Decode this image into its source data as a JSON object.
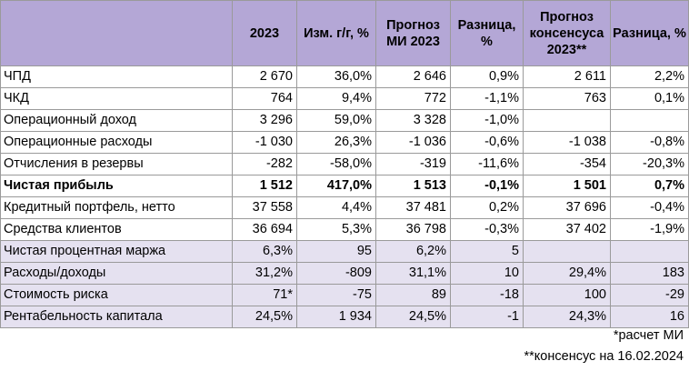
{
  "header": {
    "col0": "",
    "col1": "2023",
    "col2": "Изм. г/г, %",
    "col3": "Прогноз МИ 2023",
    "col4": "Разница, %",
    "col5": "Прогноз консенсуса 2023**",
    "col6": "Разница, %"
  },
  "rows": [
    {
      "label": "ЧПД",
      "v2023": "2 670",
      "yoy": "36,0%",
      "mi": "2 646",
      "diff_mi": "0,9%",
      "cons": "2 611",
      "diff_cons": "2,2%"
    },
    {
      "label": "ЧКД",
      "v2023": "764",
      "yoy": "9,4%",
      "mi": "772",
      "diff_mi": "-1,1%",
      "cons": "763",
      "diff_cons": "0,1%"
    },
    {
      "label": "Операционный доход",
      "v2023": "3 296",
      "yoy": "59,0%",
      "mi": "3 328",
      "diff_mi": "-1,0%",
      "cons": "",
      "diff_cons": ""
    },
    {
      "label": "Операционные расходы",
      "v2023": "-1 030",
      "yoy": "26,3%",
      "mi": "-1 036",
      "diff_mi": "-0,6%",
      "cons": "-1 038",
      "diff_cons": "-0,8%"
    },
    {
      "label": "Отчисления в резервы",
      "v2023": "-282",
      "yoy": "-58,0%",
      "mi": "-319",
      "diff_mi": "-11,6%",
      "cons": "-354",
      "diff_cons": "-20,3%"
    },
    {
      "label": "Чистая прибыль",
      "v2023": "1 512",
      "yoy": "417,0%",
      "mi": "1 513",
      "diff_mi": "-0,1%",
      "cons": "1 501",
      "diff_cons": "0,7%"
    },
    {
      "label": "Кредитный портфель, нетто",
      "v2023": "37 558",
      "yoy": "4,4%",
      "mi": "37 481",
      "diff_mi": "0,2%",
      "cons": "37 696",
      "diff_cons": "-0,4%"
    },
    {
      "label": "Средства клиентов",
      "v2023": "36 694",
      "yoy": "5,3%",
      "mi": "36 798",
      "diff_mi": "-0,3%",
      "cons": "37 402",
      "diff_cons": "-1,9%"
    },
    {
      "label": "Чистая процентная маржа",
      "v2023": "6,3%",
      "yoy": "95",
      "mi": "6,2%",
      "diff_mi": "5",
      "cons": "",
      "diff_cons": ""
    },
    {
      "label": "Расходы/доходы",
      "v2023": "31,2%",
      "yoy": "-809",
      "mi": "31,1%",
      "diff_mi": "10",
      "cons": "29,4%",
      "diff_cons": "183"
    },
    {
      "label": "Стоимость риска",
      "v2023": "71*",
      "yoy": "-75",
      "mi": "89",
      "diff_mi": "-18",
      "cons": "100",
      "diff_cons": "-29"
    },
    {
      "label": "Рентабельность капитала",
      "v2023": "24,5%",
      "yoy": "1 934",
      "mi": "24,5%",
      "diff_mi": "-1",
      "cons": "24,3%",
      "diff_cons": "16"
    }
  ],
  "footnotes": {
    "note1": "*расчет МИ",
    "note2": "**консенсус на 16.02.2024"
  }
}
